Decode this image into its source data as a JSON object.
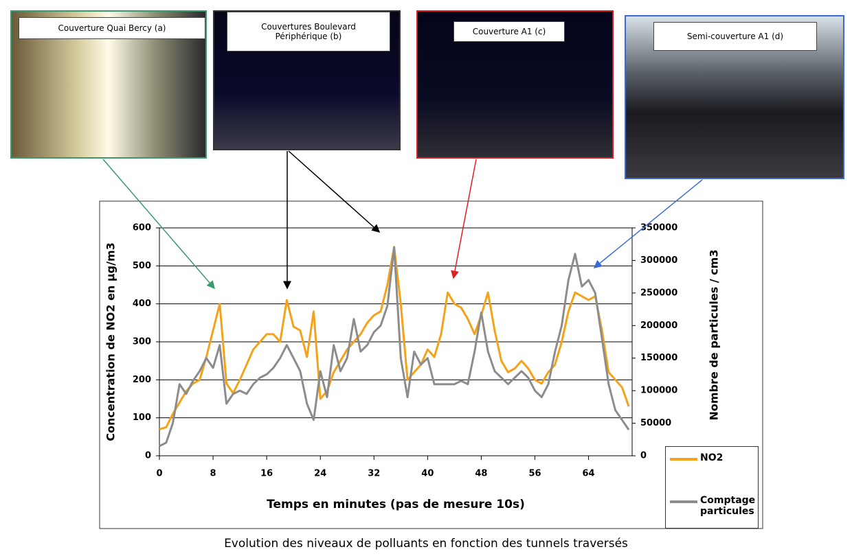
{
  "chart_data": {
    "type": "line",
    "annotations": [
      "Couverture Quai Bercy (a)",
      "Couvertures Boulevard\nPériphérique (b)",
      "Couverture A1 (c)",
      "Semi-couverture A1 (d)"
    ],
    "caption": "Evolution des niveaux de polluants en fonction des tunnels traversés",
    "x_label": "Temps en minutes (pas de mesure 10s)",
    "y_label": "Concentration de NO2 en µg/m3",
    "y2_label": "Nombre de particules / cm3",
    "x": [
      0,
      1,
      2,
      3,
      4,
      5,
      6,
      7,
      8,
      9,
      10,
      11,
      12,
      13,
      14,
      15,
      16,
      17,
      18,
      19,
      20,
      21,
      22,
      23,
      24,
      25,
      26,
      27,
      28,
      29,
      30,
      31,
      32,
      33,
      34,
      35,
      36,
      37,
      38,
      39,
      40,
      41,
      42,
      43,
      44,
      45,
      46,
      47,
      48,
      49,
      50,
      51,
      52,
      53,
      54,
      55,
      56,
      57,
      58,
      59,
      60,
      61,
      62,
      63,
      64,
      65,
      66,
      67,
      68,
      69,
      70
    ],
    "xlim": [
      0,
      70.5
    ],
    "xticks": [
      0,
      8,
      16,
      24,
      32,
      40,
      48,
      56,
      64
    ],
    "ylim": [
      0,
      600
    ],
    "yticks": [
      0,
      100,
      200,
      300,
      400,
      500,
      600
    ],
    "y2lim": [
      0,
      350000
    ],
    "y2ticks": [
      0,
      50000,
      100000,
      150000,
      200000,
      250000,
      300000,
      350000
    ],
    "grid": true,
    "series": [
      {
        "name": "NO2",
        "color": "#f5a21a",
        "values": [
          70,
          75,
          110,
          140,
          170,
          190,
          200,
          260,
          330,
          400,
          190,
          165,
          200,
          240,
          280,
          300,
          320,
          320,
          300,
          410,
          340,
          330,
          260,
          380,
          150,
          170,
          220,
          250,
          280,
          300,
          320,
          350,
          370,
          380,
          450,
          550,
          400,
          200,
          220,
          240,
          280,
          260,
          320,
          430,
          400,
          390,
          360,
          320,
          370,
          430,
          330,
          250,
          220,
          230,
          250,
          230,
          200,
          190,
          220,
          240,
          300,
          380,
          430,
          420,
          410,
          420,
          330,
          220,
          200,
          180,
          130
        ]
      },
      {
        "name": "Comptage particules",
        "color": "#8c8c8c",
        "axis": "y2",
        "values": [
          15000,
          20000,
          50000,
          110000,
          95000,
          115000,
          130000,
          150000,
          135000,
          170000,
          80000,
          95000,
          100000,
          95000,
          110000,
          120000,
          125000,
          135000,
          150000,
          170000,
          150000,
          130000,
          80000,
          55000,
          130000,
          90000,
          170000,
          130000,
          150000,
          210000,
          160000,
          170000,
          190000,
          200000,
          230000,
          320000,
          150000,
          90000,
          160000,
          140000,
          150000,
          110000,
          110000,
          110000,
          110000,
          115000,
          110000,
          160000,
          220000,
          160000,
          130000,
          120000,
          110000,
          120000,
          130000,
          120000,
          100000,
          90000,
          110000,
          160000,
          200000,
          270000,
          310000,
          260000,
          270000,
          250000,
          180000,
          110000,
          70000,
          55000,
          40000
        ]
      }
    ]
  }
}
